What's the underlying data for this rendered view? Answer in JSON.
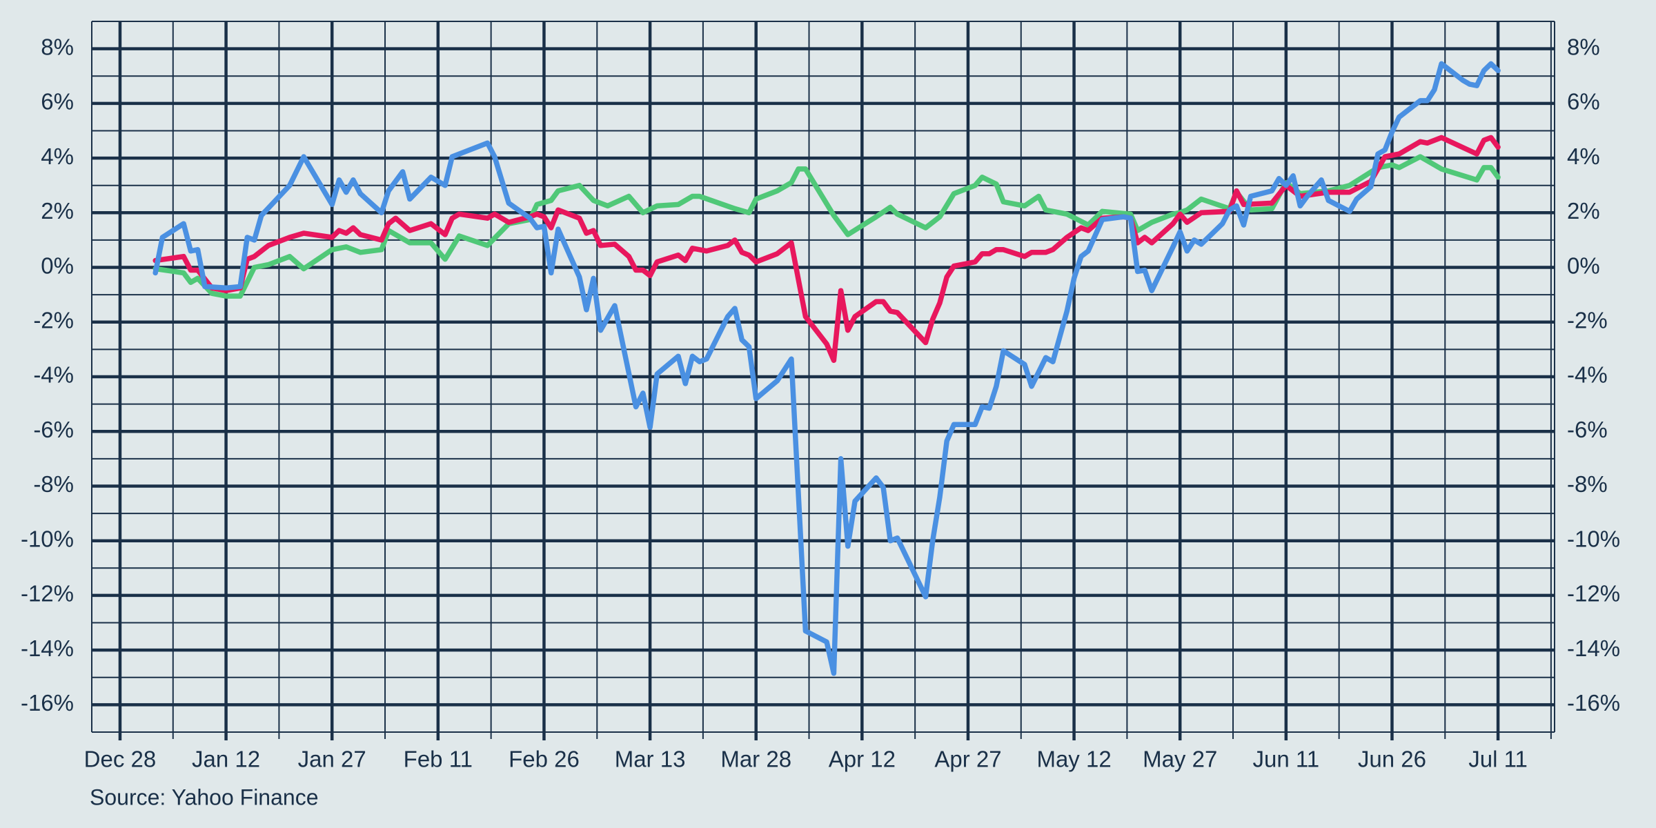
{
  "chart_data": {
    "type": "line",
    "source": "Source: Yahoo Finance",
    "xlim": [
      "Dec 24",
      "Jul 19"
    ],
    "xticks": [
      "Dec 28",
      "Jan 12",
      "Jan 27",
      "Feb 11",
      "Feb 26",
      "Mar 13",
      "Mar 28",
      "Apr 12",
      "Apr 27",
      "May 12",
      "May 27",
      "Jun 11",
      "Jun 26",
      "Jul 11"
    ],
    "ylim": [
      -17,
      9
    ],
    "yticks": [
      {
        "value": -16,
        "label": "-16%"
      },
      {
        "value": -14,
        "label": "-14%"
      },
      {
        "value": -12,
        "label": "-12%"
      },
      {
        "value": -10,
        "label": "-10%"
      },
      {
        "value": -8,
        "label": "-8%"
      },
      {
        "value": -6,
        "label": "-6%"
      },
      {
        "value": -4,
        "label": "-4%"
      },
      {
        "value": -2,
        "label": "-2%"
      },
      {
        "value": 0,
        "label": "0%"
      },
      {
        "value": 2,
        "label": "2%"
      },
      {
        "value": 4,
        "label": "4%"
      },
      {
        "value": 6,
        "label": "6%"
      },
      {
        "value": 8,
        "label": "8%"
      }
    ],
    "grid": true,
    "minor_grid": true,
    "y_labels_both_sides": true,
    "series": [
      {
        "color": "#50c878",
        "x": [
          "Jan 2",
          "Jan 6",
          "Jan 7",
          "Jan 8",
          "Jan 10",
          "Jan 12",
          "Jan 14",
          "Jan 16",
          "Jan 18",
          "Jan 21",
          "Jan 23",
          "Jan 27",
          "Jan 29",
          "Jan 31",
          "Feb 3",
          "Feb 4",
          "Feb 7",
          "Feb 10",
          "Feb 12",
          "Feb 14",
          "Feb 18",
          "Feb 21",
          "Feb 24",
          "Feb 25",
          "Feb 27",
          "Feb 28",
          "Mar 3",
          "Mar 5",
          "Mar 7",
          "Mar 10",
          "Mar 12",
          "Mar 14",
          "Mar 17",
          "Mar 19",
          "Mar 20",
          "Mar 25",
          "Mar 27",
          "Mar 28",
          "Mar 31",
          "Apr 2",
          "Apr 3",
          "Apr 4",
          "Apr 8",
          "Apr 10",
          "Apr 14",
          "Apr 16",
          "Apr 17",
          "Apr 21",
          "Apr 23",
          "Apr 25",
          "Apr 28",
          "Apr 29",
          "May 1",
          "May 2",
          "May 5",
          "May 7",
          "May 8",
          "May 11",
          "May 14",
          "May 16",
          "May 20",
          "May 21",
          "May 23",
          "May 26",
          "May 27",
          "May 28",
          "May 30",
          "Jun 3",
          "Jun 4",
          "Jun 6",
          "Jun 9",
          "Jun 11",
          "Jun 13",
          "Jun 17",
          "Jun 20",
          "Jun 24",
          "Jun 26",
          "Jun 27",
          "Jun 30",
          "Jul 3",
          "Jul 8",
          "Jul 9",
          "Jul 10",
          "Jul 11"
        ],
        "values": [
          -0.05,
          -0.2,
          -0.55,
          -0.4,
          -0.95,
          -1.05,
          -1.05,
          0,
          0.1,
          0.4,
          -0.05,
          0.65,
          0.75,
          0.55,
          0.65,
          1.35,
          0.9,
          0.9,
          0.3,
          1.15,
          0.8,
          1.6,
          1.75,
          2.3,
          2.45,
          2.8,
          3.0,
          2.45,
          2.25,
          2.6,
          2.0,
          2.25,
          2.3,
          2.6,
          2.6,
          2.15,
          2.0,
          2.5,
          2.8,
          3.1,
          3.6,
          3.6,
          1.9,
          1.2,
          1.85,
          2.2,
          1.95,
          1.45,
          1.85,
          2.7,
          3.0,
          3.3,
          3.05,
          2.4,
          2.25,
          2.6,
          2.1,
          1.95,
          1.55,
          2.05,
          1.95,
          1.35,
          1.65,
          1.95,
          2.0,
          2.1,
          2.5,
          2.15,
          2.75,
          2.1,
          2.15,
          3.1,
          2.7,
          2.8,
          3.0,
          3.65,
          3.75,
          3.65,
          4.05,
          3.6,
          3.2,
          3.65,
          3.65,
          3.3
        ]
      },
      {
        "color": "#e8175d",
        "x": [
          "Jan 2",
          "Jan 6",
          "Jan 7",
          "Jan 8",
          "Jan 10",
          "Jan 12",
          "Jan 14",
          "Jan 15",
          "Jan 16",
          "Jan 18",
          "Jan 21",
          "Jan 23",
          "Jan 27",
          "Jan 28",
          "Jan 29",
          "Jan 30",
          "Jan 31",
          "Feb 3",
          "Feb 4",
          "Feb 5",
          "Feb 7",
          "Feb 10",
          "Feb 12",
          "Feb 13",
          "Feb 14",
          "Feb 18",
          "Feb 19",
          "Feb 21",
          "Feb 24",
          "Feb 25",
          "Feb 26",
          "Feb 27",
          "Feb 28",
          "Mar 3",
          "Mar 4",
          "Mar 5",
          "Mar 6",
          "Mar 8",
          "Mar 10",
          "Mar 11",
          "Mar 12",
          "Mar 13",
          "Mar 14",
          "Mar 17",
          "Mar 18",
          "Mar 19",
          "Mar 21",
          "Mar 24",
          "Mar 25",
          "Mar 26",
          "Mar 27",
          "Mar 28",
          "Mar 31",
          "Apr 2",
          "Apr 4",
          "Apr 7",
          "Apr 8",
          "Apr 9",
          "Apr 10",
          "Apr 11",
          "Apr 14",
          "Apr 15",
          "Apr 16",
          "Apr 17",
          "Apr 21",
          "Apr 22",
          "Apr 23",
          "Apr 24",
          "Apr 25",
          "Apr 28",
          "Apr 29",
          "Apr 30",
          "May 1",
          "May 2",
          "May 5",
          "May 6",
          "May 8",
          "May 9",
          "May 11",
          "May 13",
          "May 14",
          "May 16",
          "May 19",
          "May 20",
          "May 21",
          "May 22",
          "May 23",
          "May 26",
          "May 27",
          "May 28",
          "May 30",
          "Jun 3",
          "Jun 4",
          "Jun 5",
          "Jun 9",
          "Jun 11",
          "Jun 13",
          "Jun 17",
          "Jun 20",
          "Jun 23",
          "Jun 25",
          "Jun 27",
          "Jun 30",
          "Jul 1",
          "Jul 3",
          "Jul 8",
          "Jul 9",
          "Jul 10",
          "Jul 11"
        ],
        "values": [
          0.25,
          0.4,
          -0.1,
          -0.1,
          -0.75,
          -0.85,
          -0.75,
          0.3,
          0.4,
          0.8,
          1.1,
          1.25,
          1.1,
          1.35,
          1.25,
          1.45,
          1.2,
          1.0,
          1.6,
          1.8,
          1.35,
          1.6,
          1.2,
          1.8,
          1.95,
          1.8,
          1.95,
          1.65,
          1.85,
          1.95,
          1.85,
          1.45,
          2.1,
          1.8,
          1.25,
          1.35,
          0.8,
          0.85,
          0.4,
          -0.1,
          -0.1,
          -0.3,
          0.2,
          0.45,
          0.25,
          0.7,
          0.6,
          0.8,
          1.0,
          0.55,
          0.45,
          0.2,
          0.5,
          0.9,
          -1.8,
          -2.8,
          -3.4,
          -0.85,
          -2.3,
          -1.8,
          -1.25,
          -1.25,
          -1.6,
          -1.65,
          -2.75,
          -1.9,
          -1.3,
          -0.35,
          0.05,
          0.2,
          0.5,
          0.5,
          0.65,
          0.65,
          0.4,
          0.55,
          0.55,
          0.65,
          1.1,
          1.45,
          1.35,
          1.8,
          1.85,
          1.8,
          0.9,
          1.1,
          0.9,
          1.6,
          1.95,
          1.65,
          2.0,
          2.05,
          2.8,
          2.3,
          2.35,
          3.0,
          2.6,
          2.75,
          2.75,
          3.15,
          4.05,
          4.15,
          4.6,
          4.55,
          4.75,
          4.15,
          4.65,
          4.75,
          4.4
        ]
      },
      {
        "color": "#4a90e2",
        "x": [
          "Jan 2",
          "Jan 3",
          "Jan 6",
          "Jan 7",
          "Jan 8",
          "Jan 9",
          "Jan 12",
          "Jan 14",
          "Jan 15",
          "Jan 16",
          "Jan 17",
          "Jan 21",
          "Jan 23",
          "Jan 27",
          "Jan 28",
          "Jan 29",
          "Jan 30",
          "Jan 31",
          "Feb 3",
          "Feb 4",
          "Feb 6",
          "Feb 7",
          "Feb 10",
          "Feb 12",
          "Feb 13",
          "Feb 18",
          "Feb 19",
          "Feb 21",
          "Feb 24",
          "Feb 25",
          "Feb 26",
          "Feb 27",
          "Feb 28",
          "Mar 3",
          "Mar 4",
          "Mar 5",
          "Mar 6",
          "Mar 8",
          "Mar 11",
          "Mar 12",
          "Mar 13",
          "Mar 14",
          "Mar 17",
          "Mar 18",
          "Mar 19",
          "Mar 20",
          "Mar 21",
          "Mar 24",
          "Mar 25",
          "Mar 26",
          "Mar 27",
          "Mar 28",
          "Mar 31",
          "Apr 2",
          "Apr 4",
          "Apr 7",
          "Apr 8",
          "Apr 9",
          "Apr 10",
          "Apr 11",
          "Apr 14",
          "Apr 15",
          "Apr 16",
          "Apr 17",
          "Apr 21",
          "Apr 22",
          "Apr 23",
          "Apr 24",
          "Apr 25",
          "Apr 28",
          "Apr 29",
          "Apr 30",
          "May 1",
          "May 2",
          "May 5",
          "May 6",
          "May 8",
          "May 9",
          "May 11",
          "May 12",
          "May 13",
          "May 14",
          "May 16",
          "May 19",
          "May 20",
          "May 21",
          "May 22",
          "May 23",
          "May 26",
          "May 27",
          "May 28",
          "May 29",
          "May 30",
          "Jun 2",
          "Jun 3",
          "Jun 4",
          "Jun 5",
          "Jun 6",
          "Jun 9",
          "Jun 10",
          "Jun 11",
          "Jun 12",
          "Jun 13",
          "Jun 14",
          "Jun 16",
          "Jun 17",
          "Jun 20",
          "Jun 21",
          "Jun 23",
          "Jun 24",
          "Jun 25",
          "Jun 26",
          "Jun 27",
          "Jun 30",
          "Jul 1",
          "Jul 2",
          "Jul 3",
          "Jul 6",
          "Jul 7",
          "Jul 8",
          "Jul 9",
          "Jul 10",
          "Jul 11"
        ],
        "values": [
          -0.2,
          1.1,
          1.6,
          0.6,
          0.65,
          -0.7,
          -0.75,
          -0.7,
          1.1,
          1.0,
          1.9,
          3.0,
          4.05,
          2.3,
          3.2,
          2.75,
          3.2,
          2.7,
          2.0,
          2.8,
          3.5,
          2.5,
          3.3,
          3.0,
          4.05,
          4.55,
          4.05,
          2.35,
          1.8,
          1.45,
          1.5,
          -0.2,
          1.4,
          -0.35,
          -1.55,
          -0.4,
          -2.3,
          -1.4,
          -5.1,
          -4.6,
          -5.85,
          -3.9,
          -3.25,
          -4.25,
          -3.25,
          -3.45,
          -3.35,
          -1.8,
          -1.5,
          -2.65,
          -2.9,
          -4.8,
          -4.15,
          -3.35,
          -13.3,
          -13.7,
          -14.85,
          -7.0,
          -10.2,
          -8.55,
          -7.7,
          -8.05,
          -10.0,
          -9.9,
          -12.05,
          -10.0,
          -8.4,
          -6.35,
          -5.75,
          -5.75,
          -5.1,
          -5.15,
          -4.35,
          -3.05,
          -3.55,
          -4.35,
          -3.3,
          -3.45,
          -1.6,
          -0.4,
          0.4,
          0.6,
          1.75,
          1.85,
          1.8,
          -0.15,
          -0.1,
          -0.85,
          0.75,
          1.3,
          0.6,
          1.0,
          0.85,
          1.6,
          2.1,
          2.25,
          1.55,
          2.6,
          2.8,
          3.25,
          3.0,
          3.35,
          2.25,
          2.6,
          3.2,
          2.45,
          2.05,
          2.5,
          2.95,
          4.15,
          4.3,
          4.95,
          5.5,
          6.1,
          6.1,
          6.5,
          7.45,
          6.85,
          6.7,
          6.65,
          7.2,
          7.45,
          7.2
        ]
      }
    ]
  }
}
